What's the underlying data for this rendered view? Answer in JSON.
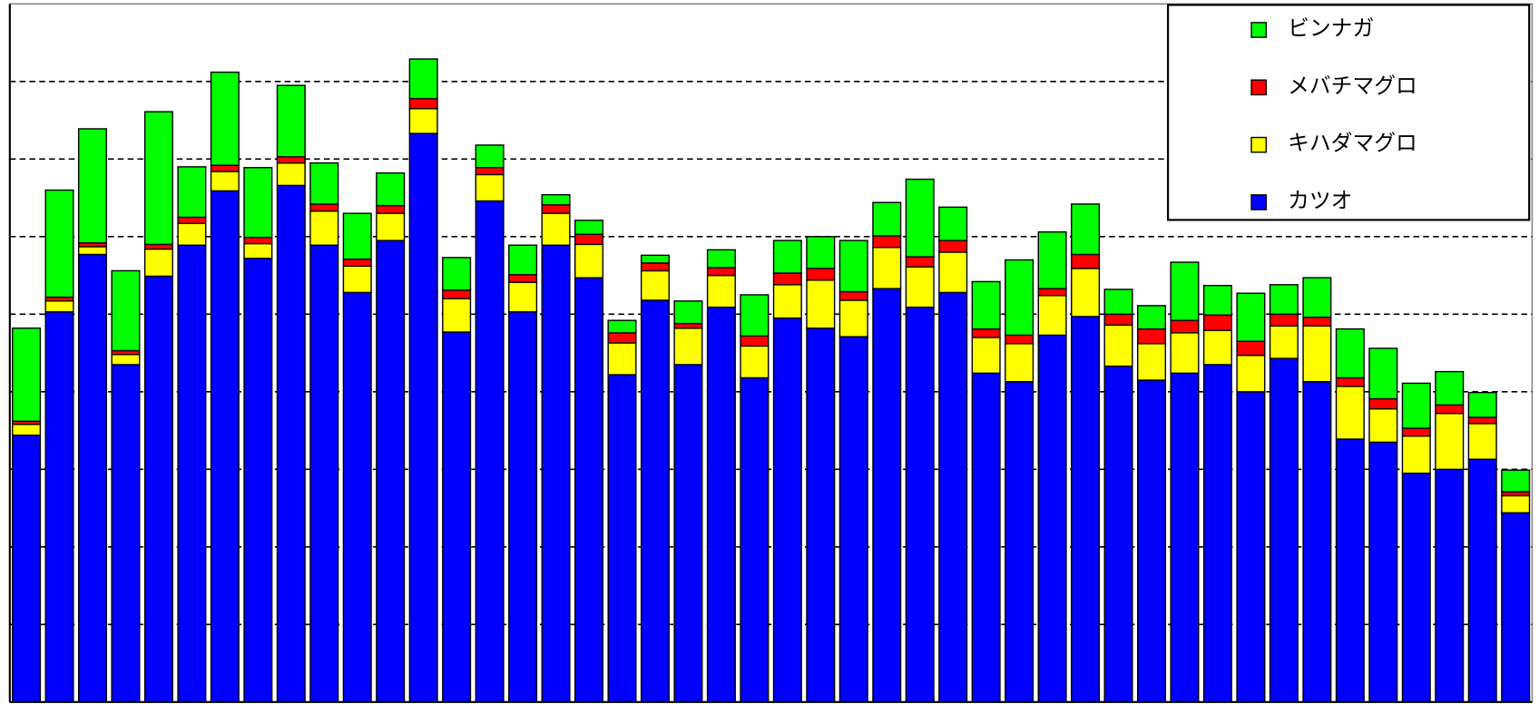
{
  "chart_data": {
    "type": "stacked_bar",
    "categories": [
      null,
      null,
      null,
      null,
      null,
      null,
      null,
      null,
      null,
      null,
      null,
      null,
      null,
      null,
      null,
      null,
      null,
      null,
      null,
      null,
      null,
      null,
      null,
      null,
      null,
      null,
      null,
      null,
      null,
      null,
      null,
      null,
      null,
      null,
      null,
      null,
      null,
      null,
      null,
      null,
      null,
      null,
      null,
      null,
      null,
      null
    ],
    "series": [
      {
        "name": "カツオ",
        "color": "#0000ff",
        "values": [
          3.44,
          5.03,
          5.77,
          4.35,
          5.49,
          5.89,
          6.59,
          5.72,
          6.66,
          5.89,
          5.28,
          5.95,
          7.33,
          4.77,
          6.46,
          5.03,
          5.89,
          5.47,
          4.22,
          5.18,
          4.35,
          5.09,
          4.18,
          4.95,
          4.82,
          4.71,
          5.33,
          5.09,
          5.28,
          4.24,
          4.13,
          4.73,
          4.97,
          4.33,
          4.15,
          4.24,
          4.35,
          4.0,
          4.43,
          4.13,
          3.39,
          3.35,
          2.95,
          3.0,
          3.13,
          2.44
        ]
      },
      {
        "name": "キハダマグロ",
        "color": "#ffff00",
        "values": [
          0.14,
          0.14,
          0.1,
          0.13,
          0.35,
          0.28,
          0.25,
          0.19,
          0.29,
          0.44,
          0.34,
          0.35,
          0.32,
          0.43,
          0.34,
          0.38,
          0.41,
          0.43,
          0.41,
          0.38,
          0.47,
          0.41,
          0.41,
          0.43,
          0.62,
          0.47,
          0.53,
          0.52,
          0.52,
          0.46,
          0.49,
          0.51,
          0.62,
          0.53,
          0.47,
          0.52,
          0.44,
          0.47,
          0.42,
          0.72,
          0.68,
          0.43,
          0.48,
          0.72,
          0.46,
          0.22
        ]
      },
      {
        "name": "メバチマグロ",
        "color": "#ff0000",
        "values": [
          0.04,
          0.05,
          0.05,
          0.05,
          0.06,
          0.08,
          0.08,
          0.08,
          0.08,
          0.09,
          0.09,
          0.1,
          0.13,
          0.11,
          0.09,
          0.1,
          0.11,
          0.13,
          0.13,
          0.1,
          0.06,
          0.1,
          0.13,
          0.15,
          0.15,
          0.11,
          0.15,
          0.13,
          0.15,
          0.11,
          0.11,
          0.09,
          0.18,
          0.14,
          0.19,
          0.16,
          0.2,
          0.18,
          0.15,
          0.11,
          0.11,
          0.13,
          0.1,
          0.11,
          0.08,
          0.05
        ]
      },
      {
        "name": "ビンナガ",
        "color": "#00ff00",
        "values": [
          1.2,
          1.38,
          1.47,
          1.03,
          1.71,
          0.65,
          1.2,
          0.9,
          0.92,
          0.53,
          0.59,
          0.42,
          0.51,
          0.42,
          0.29,
          0.38,
          0.13,
          0.18,
          0.16,
          0.1,
          0.29,
          0.23,
          0.53,
          0.42,
          0.41,
          0.66,
          0.43,
          1.0,
          0.43,
          0.61,
          0.97,
          0.73,
          0.65,
          0.32,
          0.3,
          0.75,
          0.38,
          0.62,
          0.38,
          0.51,
          0.63,
          0.65,
          0.58,
          0.43,
          0.32,
          0.28
        ]
      }
    ],
    "ylim": [
      0,
      9
    ],
    "yticks": [
      1,
      2,
      3,
      4,
      5,
      6,
      7,
      8
    ],
    "grid": true,
    "legend": "upper right"
  }
}
